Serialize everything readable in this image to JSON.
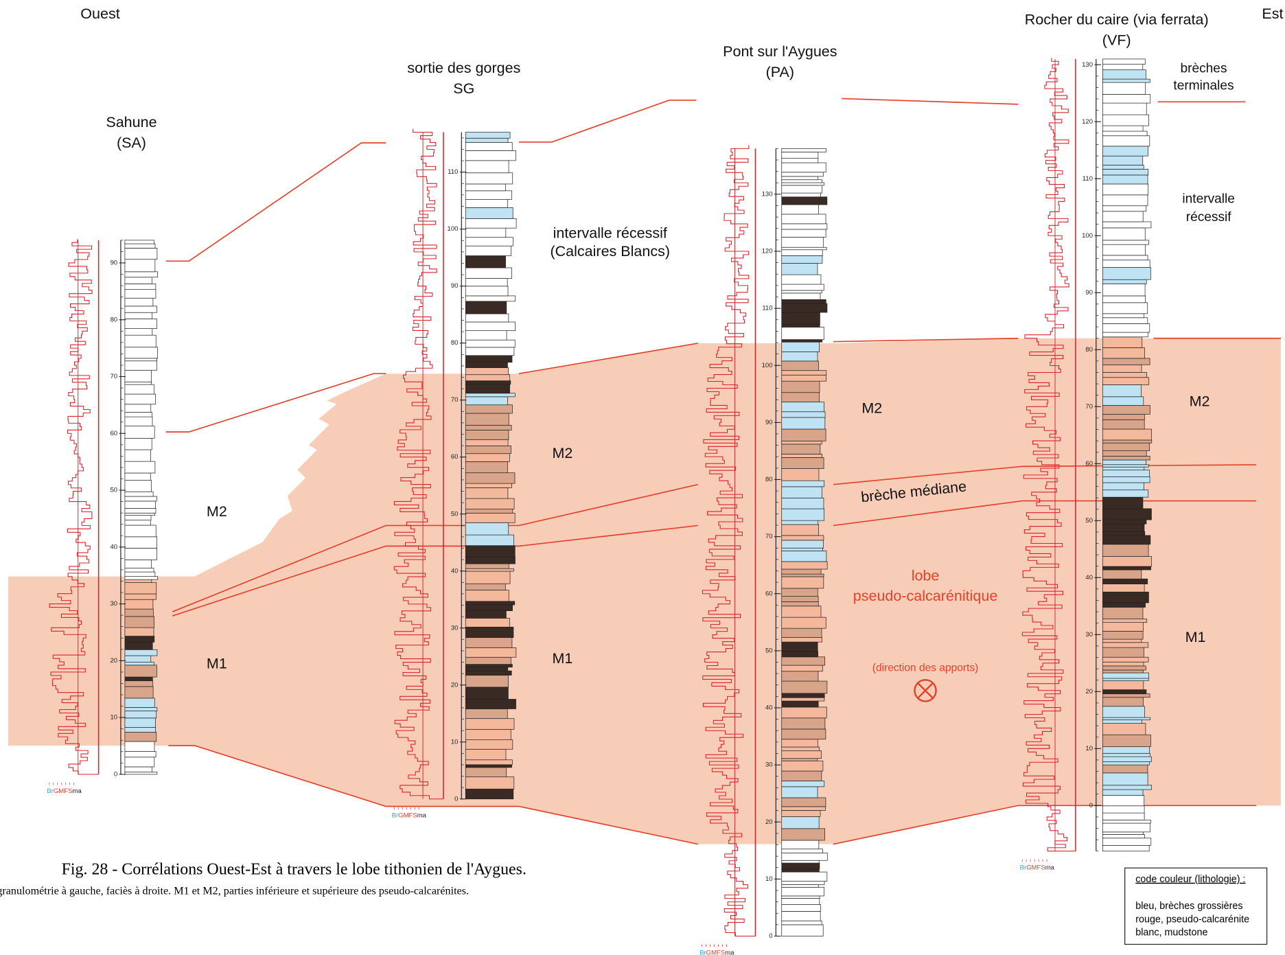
{
  "header": {
    "west": "Ouest",
    "east": "Est"
  },
  "grain_legend": [
    "Br",
    "GMFS",
    "ma"
  ],
  "columns": [
    {
      "title_lines": [
        "Sahune",
        "(SA)"
      ],
      "ticks": [
        0,
        10,
        20,
        30,
        40,
        50,
        60,
        70,
        80,
        90
      ],
      "labels": [
        "M2",
        "M1"
      ]
    },
    {
      "title_lines": [
        "sortie des gorges",
        "SG"
      ],
      "ticks": [
        0,
        10,
        20,
        30,
        40,
        50,
        60,
        70,
        80,
        90,
        100,
        110
      ],
      "labels": [
        "M2",
        "M1"
      ]
    },
    {
      "title_lines": [
        "Pont sur l'Aygues",
        "(PA)"
      ],
      "ticks": [
        0,
        10,
        20,
        30,
        40,
        50,
        60,
        70,
        80,
        90,
        100,
        110,
        120,
        130
      ],
      "labels": [
        "M2"
      ]
    },
    {
      "title_lines": [
        "Rocher du caire (via ferrata)",
        "(VF)"
      ],
      "ticks": [
        0,
        10,
        20,
        30,
        40,
        50,
        60,
        70,
        80,
        90,
        100,
        110,
        120,
        130
      ],
      "labels": [
        "M2",
        "M1"
      ]
    }
  ],
  "annotations": {
    "recessive_sg": [
      "intervalle récessif",
      "(Calcaires Blancs)"
    ],
    "breche_mediane": "brèche médiane",
    "lobe": [
      "lobe",
      "pseudo-calcarénitique"
    ],
    "direction": "(direction des apports)",
    "breches_terminales": [
      "brèches",
      "terminales"
    ],
    "recessive_vf": [
      "intervalle",
      "récessif"
    ]
  },
  "caption": {
    "title": "Fig. 28 - Corrélations Ouest-Est à travers le lobe tithonien de l'Aygues.",
    "subtitle": "granulométrie à gauche, faciès à droite. M1 et M2, parties inférieure et supérieure des pseudo-calcarénites."
  },
  "legend_box": {
    "title": "code couleur (lithologie) :",
    "lines": [
      "bleu, brèches grossières",
      "rouge, pseudo-calcarénite",
      "blanc, mudstone"
    ]
  }
}
